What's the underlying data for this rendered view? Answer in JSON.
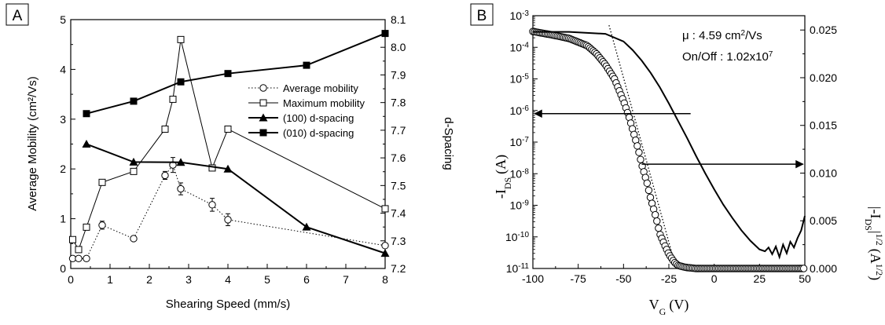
{
  "chart_data": [
    {
      "panel_label": "A",
      "type": "line",
      "xlabel": "Shearing Speed (mm/s)",
      "ylabel": "Average Mobility (cm²/Vs)",
      "y2label": "d-Spacing",
      "xlim": [
        0,
        8
      ],
      "ylim": [
        0,
        5
      ],
      "y2lim": [
        7.2,
        8.1
      ],
      "x_ticks": [
        "0",
        "1",
        "2",
        "3",
        "4",
        "5",
        "6",
        "7",
        "8"
      ],
      "y_ticks": [
        "0",
        "1",
        "2",
        "3",
        "4",
        "5"
      ],
      "y2_ticks": [
        "7.2",
        "7.3",
        "7.4",
        "7.5",
        "7.6",
        "7.7",
        "7.8",
        "7.9",
        "8.0",
        "8.1"
      ],
      "legend_position": "center-right",
      "series": [
        {
          "name": "Average mobility",
          "axis": "left",
          "marker": "open-circle",
          "line": "dotted",
          "x": [
            0.05,
            0.2,
            0.4,
            0.8,
            1.6,
            2.4,
            2.6,
            2.8,
            3.6,
            4.0,
            8.0
          ],
          "y": [
            0.2,
            0.2,
            0.2,
            0.87,
            0.6,
            1.87,
            2.08,
            1.6,
            1.28,
            0.98,
            0.46
          ],
          "err": [
            0.03,
            0.03,
            0.03,
            0.08,
            0.03,
            0.08,
            0.15,
            0.12,
            0.13,
            0.12,
            0.05
          ]
        },
        {
          "name": "Maximum mobility",
          "axis": "left",
          "marker": "open-square",
          "line": "solid-thin",
          "x": [
            0.05,
            0.2,
            0.4,
            0.8,
            1.6,
            2.4,
            2.6,
            2.8,
            3.6,
            4.0,
            8.0
          ],
          "y": [
            0.58,
            0.38,
            0.83,
            1.73,
            1.95,
            2.8,
            3.4,
            4.6,
            2.02,
            2.8,
            1.2
          ]
        },
        {
          "name": "(100) d-spacing",
          "axis": "right",
          "marker": "filled-triangle",
          "line": "solid",
          "x": [
            0.4,
            1.6,
            2.8,
            4.0,
            6.0,
            8.0
          ],
          "y": [
            7.65,
            7.585,
            7.584,
            7.56,
            7.35,
            7.255
          ]
        },
        {
          "name": "(010) d-spacing",
          "axis": "right",
          "marker": "filled-square",
          "line": "solid",
          "x": [
            0.4,
            1.6,
            2.8,
            4.0,
            6.0,
            8.0
          ],
          "y": [
            7.76,
            7.805,
            7.875,
            7.905,
            7.935,
            8.05
          ]
        }
      ]
    },
    {
      "panel_label": "B",
      "type": "line",
      "xlabel": "V",
      "xlabel_sub": "G",
      "xlabel_unit": "(V)",
      "ylabel": "-I",
      "ylabel_sub": "DS",
      "ylabel_unit": "(A)",
      "y2label_pre": "|-I",
      "y2label_sub": "DS",
      "y2label_sup": "1/2",
      "y2label_unit": "(A",
      "y2label_unit_sup": "1/2",
      "y2label_close": ")",
      "xlim": [
        -100,
        50
      ],
      "ylim_log10": [
        -11,
        -3
      ],
      "y_scale": "log",
      "y2lim": [
        0,
        0.0265
      ],
      "x_ticks": [
        "-100",
        "-75",
        "-50",
        "-25",
        "0",
        "25",
        "50"
      ],
      "y_tick_base": "10",
      "y_tick_exponents": [
        "-11",
        "-10",
        "-9",
        "-8",
        "-7",
        "-6",
        "-5",
        "-4",
        "-3"
      ],
      "y2_ticks": [
        "0.000",
        "0.005",
        "0.010",
        "0.015",
        "0.020",
        "0.025"
      ],
      "annotation_mu_label": "μ : 4.59 cm",
      "annotation_mu_sup": "2",
      "annotation_mu_unit": "/Vs",
      "annotation_onoff_label": "On/Off : 1.02x10",
      "annotation_onoff_sup": "7",
      "series": [
        {
          "name": "-I_DS (log)",
          "axis": "left",
          "marker": "open-circle",
          "x": [
            -100,
            -90,
            -80,
            -70,
            -65,
            -60,
            -55,
            -50,
            -47,
            -45,
            -42,
            -40,
            -37,
            -35,
            -32,
            -30,
            -27,
            -25,
            -22,
            -20,
            -17,
            -15,
            -10,
            -5,
            0,
            10,
            20,
            30,
            40,
            50
          ],
          "log10_y": [
            -3.5,
            -3.6,
            -3.72,
            -3.95,
            -4.2,
            -4.55,
            -5.0,
            -5.7,
            -6.2,
            -6.6,
            -7.2,
            -7.7,
            -8.3,
            -8.8,
            -9.4,
            -9.9,
            -10.3,
            -10.55,
            -10.8,
            -10.9,
            -10.95,
            -10.97,
            -11.0,
            -11.0,
            -11.0,
            -11.0,
            -11.0,
            -11.0,
            -11.0,
            -11.0
          ]
        },
        {
          "name": "|-I_DS|^1/2",
          "axis": "right",
          "marker": "none",
          "x": [
            -100,
            -80,
            -60,
            -50,
            -45,
            -40,
            -35,
            -30,
            -25,
            -20,
            -15,
            -10,
            -5,
            0,
            5,
            10,
            15,
            20,
            25,
            28,
            30,
            32,
            34,
            36,
            38,
            40,
            42,
            44,
            46,
            48,
            50
          ],
          "y": [
            0.0248,
            0.0248,
            0.0246,
            0.0238,
            0.0229,
            0.0218,
            0.0205,
            0.019,
            0.0173,
            0.0155,
            0.0137,
            0.0118,
            0.01,
            0.0083,
            0.0067,
            0.0053,
            0.004,
            0.0029,
            0.002,
            0.0018,
            0.0022,
            0.0015,
            0.0023,
            0.0012,
            0.0025,
            0.0016,
            0.0028,
            0.0022,
            0.0032,
            0.004,
            0.0055
          ]
        }
      ]
    }
  ]
}
